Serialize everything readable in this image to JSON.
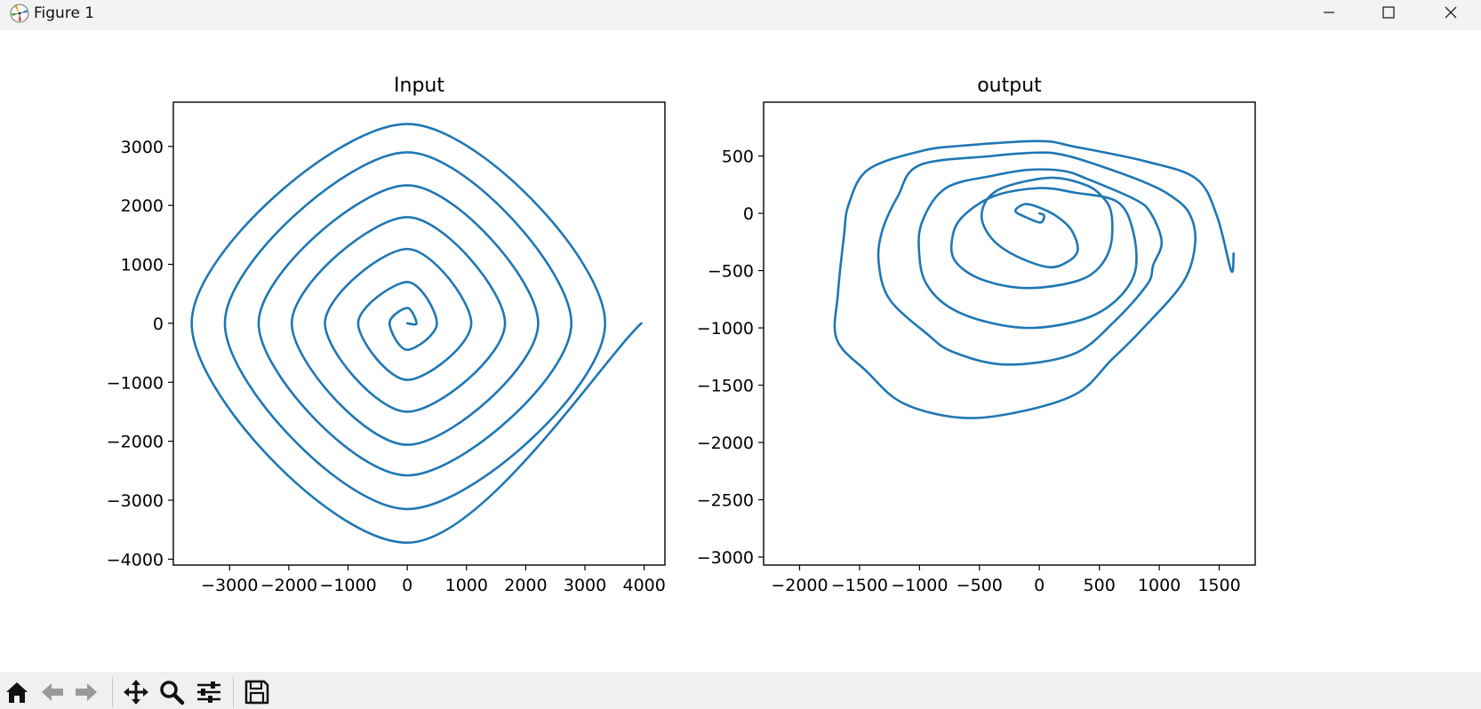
{
  "window": {
    "title": "Figure 1",
    "icons": {
      "app": "matplotlib-icon",
      "minimize": "minimize-icon",
      "maximize": "maximize-icon",
      "close": "close-icon"
    }
  },
  "toolbar": {
    "buttons": [
      "home-icon",
      "back-arrow-icon",
      "forward-arrow-icon",
      "pan-icon",
      "zoom-icon",
      "configure-subplots-icon",
      "save-icon"
    ]
  },
  "chart_data": [
    {
      "type": "line",
      "title": "Input",
      "xlabel": "",
      "ylabel": "",
      "xlim": [
        -3950,
        4350
      ],
      "ylim": [
        -4100,
        3750
      ],
      "xticks": [
        -3000,
        -2000,
        -1000,
        0,
        1000,
        2000,
        3000,
        4000
      ],
      "yticks": [
        -4000,
        -3000,
        -2000,
        -1000,
        0,
        1000,
        2000,
        3000
      ],
      "grid": false,
      "color": "#1f77b4",
      "series": [
        {
          "shape": "archimedean spiral",
          "start": [
            0,
            0
          ],
          "end": [
            3950,
            0
          ],
          "turns": 7,
          "radius_per_turn": 565,
          "x": [
            0,
            155,
            0,
            -300,
            0,
            500,
            0,
            -830,
            0,
            1080,
            0,
            -1390,
            0,
            1650,
            0,
            -1950,
            0,
            2210,
            0,
            -2510,
            0,
            2770,
            0,
            -3080,
            0,
            3340,
            0,
            -3640,
            0,
            3950
          ],
          "y": [
            0,
            0,
            260,
            0,
            -450,
            0,
            700,
            0,
            -960,
            0,
            1260,
            0,
            -1500,
            0,
            1800,
            0,
            -2060,
            0,
            2340,
            0,
            -2580,
            0,
            2900,
            0,
            -3150,
            0,
            3380,
            0,
            -3720,
            0
          ]
        }
      ]
    },
    {
      "type": "line",
      "title": "output",
      "xlabel": "",
      "ylabel": "",
      "xlim": [
        -2300,
        1800
      ],
      "ylim": [
        -3070,
        970
      ],
      "xticks": [
        -2000,
        -1500,
        -1000,
        -500,
        0,
        500,
        1000,
        1500
      ],
      "yticks": [
        -3000,
        -2500,
        -2000,
        -1500,
        -1000,
        -500,
        0,
        500
      ],
      "grid": false,
      "color": "#1f77b4",
      "series": [
        {
          "shape": "distorted spiral",
          "start": [
            0,
            0
          ],
          "end": [
            1620,
            -350
          ],
          "x": [
            0,
            40,
            10,
            -100,
            -200,
            -120,
            0,
            150,
            270,
            320,
            240,
            80,
            -180,
            -380,
            -480,
            -430,
            -260,
            100,
            380,
            520,
            600,
            590,
            450,
            200,
            -160,
            -500,
            -700,
            -730,
            -650,
            -380,
            0,
            300,
            650,
            780,
            800,
            650,
            380,
            -50,
            -430,
            -750,
            -940,
            -1000,
            -980,
            -780,
            -380,
            -80,
            200,
            400,
            800,
            930,
            1020,
            950,
            900,
            620,
            280,
            -280,
            -720,
            -940,
            -1250,
            -1340,
            -1310,
            -1180,
            -1000,
            -400,
            0,
            200,
            460,
            880,
            1100,
            1250,
            1300,
            1200,
            850,
            600,
            300,
            -250,
            -700,
            -1150,
            -1440,
            -1690,
            -1680,
            -1630,
            -1590,
            -1430,
            -1000,
            -650,
            0,
            300,
            900,
            1310,
            1480,
            1600,
            1620
          ],
          "y": [
            0,
            -20,
            -80,
            -40,
            20,
            80,
            50,
            -30,
            -150,
            -320,
            -420,
            -470,
            -380,
            -240,
            -50,
            130,
            240,
            310,
            250,
            150,
            0,
            -300,
            -520,
            -620,
            -650,
            -570,
            -420,
            -240,
            -40,
            150,
            220,
            180,
            100,
            -150,
            -500,
            -750,
            -920,
            -1000,
            -950,
            -820,
            -620,
            -380,
            -80,
            220,
            330,
            380,
            370,
            300,
            120,
            0,
            -250,
            -450,
            -620,
            -950,
            -1230,
            -1320,
            -1210,
            -1050,
            -750,
            -430,
            -150,
            150,
            420,
            500,
            530,
            510,
            430,
            270,
            150,
            0,
            -250,
            -600,
            -1020,
            -1280,
            -1580,
            -1750,
            -1780,
            -1650,
            -1380,
            -1100,
            -700,
            -200,
            80,
            380,
            540,
            590,
            630,
            580,
            450,
            300,
            -20,
            -500,
            -350
          ]
        }
      ]
    }
  ]
}
